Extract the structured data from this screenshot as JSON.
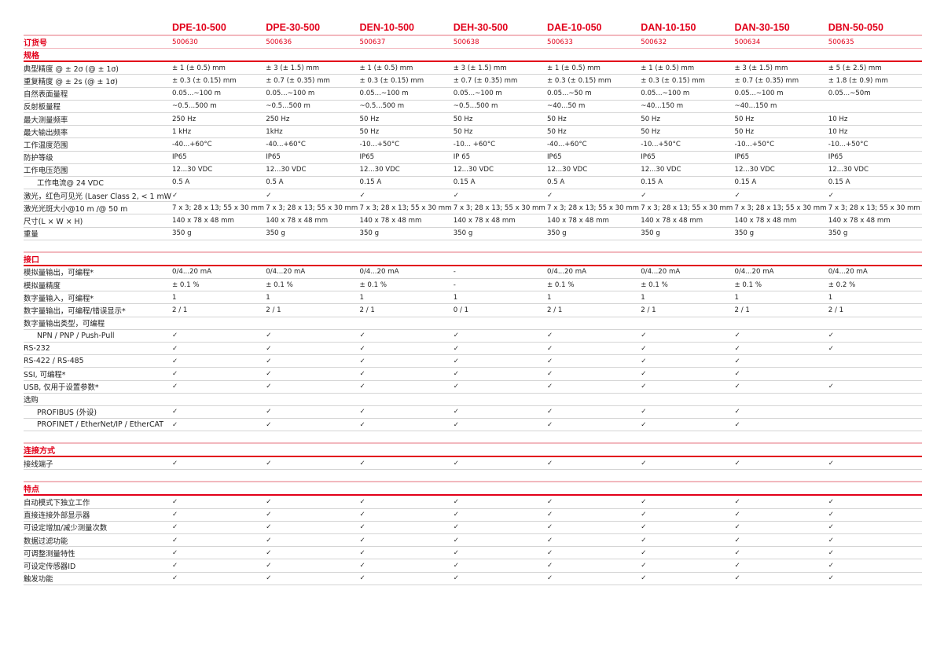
{
  "accent_color": "#e2001a",
  "models": [
    "DPE-10-500",
    "DPE-30-500",
    "DEN-10-500",
    "DEH-30-500",
    "DAE-10-050",
    "DAN-10-150",
    "DAN-30-150",
    "DBN-50-050"
  ],
  "order": {
    "label": "订货号",
    "values": [
      "500630",
      "500636",
      "500637",
      "500638",
      "500633",
      "500632",
      "500634",
      "500635"
    ]
  },
  "sections": [
    {
      "title": "规格",
      "rows": [
        {
          "label": "典型精度 @ ± 2σ (@ ± 1σ)",
          "values": [
            "± 1 (± 0.5) mm",
            "± 3 (± 1.5) mm",
            "± 1 (± 0.5) mm",
            "± 3 (± 1.5) mm",
            "± 1 (± 0.5) mm",
            "± 1 (± 0.5) mm",
            "± 3 (± 1.5) mm",
            "± 5 (± 2.5) mm"
          ]
        },
        {
          "label": "重复精度 @ ± 2s (@ ± 1σ)",
          "values": [
            "± 0.3 (± 0.15) mm",
            "± 0.7 (± 0.35) mm",
            "± 0.3 (± 0.15) mm",
            "± 0.7 (± 0.35) mm",
            "± 0.3 (± 0.15) mm",
            "± 0.3 (± 0.15) mm",
            "± 0.7 (± 0.35) mm",
            "± 1.8 (± 0.9) mm"
          ]
        },
        {
          "label": "自然表面量程",
          "values": [
            "0.05...~100 m",
            "0.05...~100 m",
            "0.05...~100 m",
            "0.05...~100 m",
            "0.05...~50 m",
            "0.05...~100 m",
            "0.05...~100 m",
            "0.05...~50m"
          ]
        },
        {
          "label": "反射板量程",
          "values": [
            " ~0.5...500 m",
            " ~0.5...500 m",
            " ~0.5...500 m",
            " ~0.5...500 m",
            "~40...50 m",
            "~40...150 m",
            "~40...150 m",
            ""
          ]
        },
        {
          "label": "最大测量频率",
          "values": [
            "250 Hz",
            "250 Hz",
            "50 Hz",
            "50 Hz",
            "50 Hz",
            "50 Hz",
            "50 Hz",
            "10 Hz"
          ]
        },
        {
          "label": "最大输出频率",
          "values": [
            "1 kHz",
            "1kHz",
            "50 Hz",
            "50 Hz",
            "50 Hz",
            "50 Hz",
            "50 Hz",
            "10 Hz"
          ]
        },
        {
          "label": "工作温度范围",
          "values": [
            "-40...+60°C",
            "-40...+60°C",
            "-10...+50°C",
            "-10... +60°C",
            "-40...+60°C",
            "-10...+50°C",
            "-10...+50°C",
            "-10...+50°C"
          ]
        },
        {
          "label": "防护等级",
          "values": [
            "IP65",
            "IP65",
            "IP65",
            "IP 65",
            "IP65",
            "IP65",
            "IP65",
            "IP65"
          ]
        },
        {
          "label": "工作电压范围",
          "values": [
            "12...30 VDC",
            "12...30 VDC",
            "12...30 VDC",
            "12...30 VDC",
            "12...30 VDC",
            "12...30 VDC",
            "12...30 VDC",
            "12...30 VDC"
          ]
        },
        {
          "label": "工作电流@ 24 VDC",
          "indent": true,
          "values": [
            "0.5 A",
            "0.5 A",
            "0.15 A",
            "0.15 A",
            "0.5 A",
            "0.15 A",
            "0.15 A",
            "0.15 A"
          ]
        },
        {
          "label": "激光，红色可见光 (Laser Class 2, < 1 mW)",
          "values": [
            "✓",
            "✓",
            "✓",
            "✓",
            "✓",
            "✓",
            "✓",
            "✓"
          ]
        },
        {
          "label": "激光光斑大小@10 m /@ 50 m",
          "values": [
            "7 x 3; 28 x 13; 55 x 30 mm",
            "7 x 3; 28 x 13; 55 x 30 mm",
            "7 x 3; 28 x 13; 55 x 30 mm",
            "7 x 3; 28 x 13; 55 x 30 mm",
            "7 x 3; 28 x 13; 55 x 30 mm",
            "7 x 3; 28 x 13; 55 x 30 mm",
            "7 x 3; 28 x 13; 55 x 30 mm",
            "7 x 3; 28 x 13; 55 x 30 mm"
          ]
        },
        {
          "label": "尺寸(L × W × H)",
          "values": [
            "140 x 78 x 48 mm",
            "140 x 78 x 48 mm",
            "140 x 78 x 48 mm",
            "140 x 78 x 48 mm",
            "140 x 78 x 48 mm",
            "140 x 78 x 48 mm",
            "140 x 78 x 48 mm",
            "140 x 78 x 48 mm"
          ]
        },
        {
          "label": "重量",
          "values": [
            "350 g",
            "350 g",
            "350 g",
            "350 g",
            "350 g",
            "350 g",
            "350 g",
            "350 g"
          ]
        }
      ]
    },
    {
      "title": "接口",
      "rows": [
        {
          "label": "模拟量输出，可编程*",
          "values": [
            "0/4...20 mA",
            "0/4...20 mA",
            "0/4...20 mA",
            "-",
            "0/4...20 mA",
            "0/4...20 mA",
            "0/4...20 mA",
            "0/4...20 mA"
          ]
        },
        {
          "label": "模拟量精度",
          "values": [
            "± 0.1 %",
            "± 0.1 %",
            "± 0.1 %",
            "-",
            "± 0.1 %",
            "± 0.1 %",
            "± 0.1 %",
            "± 0.2 %"
          ]
        },
        {
          "label": "数字量输入，可编程*",
          "values": [
            "1",
            "1",
            "1",
            "1",
            "1",
            "1",
            "1",
            "1"
          ]
        },
        {
          "label": "数字量输出，可编程/错误显示*",
          "values": [
            "2 / 1",
            "2 / 1",
            "2 / 1",
            "0 / 1",
            "2 / 1",
            "2 / 1",
            "2 / 1",
            "2 / 1"
          ]
        },
        {
          "label": "数字量输出类型，可编程",
          "values": [
            "",
            "",
            "",
            "",
            "",
            "",
            "",
            ""
          ]
        },
        {
          "label": "NPN / PNP / Push-Pull",
          "indent": true,
          "values": [
            "✓",
            "✓",
            "✓",
            "✓",
            "✓",
            "✓",
            "✓",
            "✓"
          ]
        },
        {
          "label": "RS-232",
          "values": [
            "✓",
            "✓",
            "✓",
            "✓",
            "✓",
            "✓",
            "✓",
            "✓"
          ]
        },
        {
          "label": "RS-422 / RS-485",
          "values": [
            "✓",
            "✓",
            "✓",
            "✓",
            "✓",
            "✓",
            "✓",
            ""
          ]
        },
        {
          "label": "SSI, 可编程*",
          "values": [
            "✓",
            "✓",
            "✓",
            "✓",
            "✓",
            "✓",
            "✓",
            ""
          ]
        },
        {
          "label": "USB, 仅用于设置参数*",
          "values": [
            "✓",
            "✓",
            "✓",
            "✓",
            "✓",
            "✓",
            "✓",
            "✓"
          ]
        },
        {
          "label": "选购",
          "values": [
            "",
            "",
            "",
            "",
            "",
            "",
            "",
            ""
          ]
        },
        {
          "label": "PROFIBUS (外设)",
          "indent": true,
          "values": [
            "✓",
            "✓",
            "✓",
            "✓",
            "✓",
            "✓",
            "✓",
            ""
          ]
        },
        {
          "label": "PROFINET / EtherNet/IP / EtherCAT",
          "indent": true,
          "values": [
            "✓",
            "✓",
            "✓",
            "✓",
            "✓",
            "✓",
            "✓",
            ""
          ]
        }
      ]
    },
    {
      "title": "连接方式",
      "rows": [
        {
          "label": "接线端子",
          "values": [
            "✓",
            "✓",
            "✓",
            "✓",
            "✓",
            "✓",
            "✓",
            "✓"
          ]
        }
      ]
    },
    {
      "title": "特点",
      "rows": [
        {
          "label": "自动模式下独立工作",
          "values": [
            "✓",
            "✓",
            "✓",
            "✓",
            "✓",
            "✓",
            "✓",
            "✓"
          ]
        },
        {
          "label": "直接连接外部显示器",
          "values": [
            "✓",
            "✓",
            "✓",
            "✓",
            "✓",
            "✓",
            "✓",
            "✓"
          ]
        },
        {
          "label": "可设定增加/减少测量次数",
          "values": [
            "✓",
            "✓",
            "✓",
            "✓",
            "✓",
            "✓",
            "✓",
            "✓"
          ]
        },
        {
          "label": "数据过滤功能",
          "values": [
            "✓",
            "✓",
            "✓",
            "✓",
            "✓",
            "✓",
            "✓",
            "✓"
          ]
        },
        {
          "label": "可调整测量特性",
          "values": [
            "✓",
            "✓",
            "✓",
            "✓",
            "✓",
            "✓",
            "✓",
            "✓"
          ]
        },
        {
          "label": "可设定传感器ID",
          "values": [
            "✓",
            "✓",
            "✓",
            "✓",
            "✓",
            "✓",
            "✓",
            "✓"
          ]
        },
        {
          "label": "触发功能",
          "values": [
            "✓",
            "✓",
            "✓",
            "✓",
            "✓",
            "✓",
            "✓",
            "✓"
          ]
        }
      ]
    }
  ]
}
